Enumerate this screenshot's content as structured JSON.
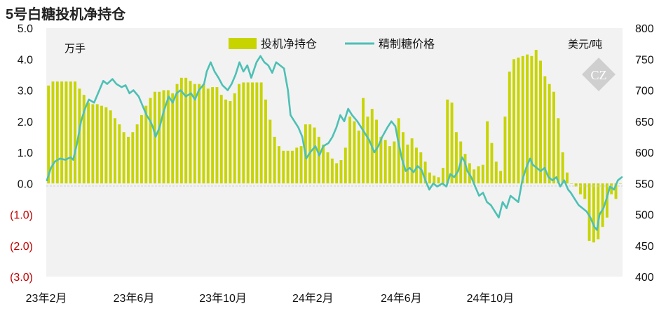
{
  "chart_data": {
    "type": "bar+line",
    "title": "5号白糖投机净持仓",
    "left_unit": "万手",
    "right_unit": "美元/吨",
    "legend": [
      {
        "label": "投机净持仓",
        "kind": "bar",
        "color": "#c8d400"
      },
      {
        "label": "精制糖价格",
        "kind": "line",
        "color": "#4dc0b5"
      }
    ],
    "colors": {
      "plot_bg": "#f2f2f2",
      "bar": "#c8d400",
      "line": "#4dc0b5",
      "negative_tick": "#c00000"
    },
    "left_axis": {
      "min": -3.0,
      "max": 5.0,
      "ticks": [
        {
          "value": 5.0,
          "label": "5.0"
        },
        {
          "value": 4.0,
          "label": "4.0"
        },
        {
          "value": 3.0,
          "label": "3.0"
        },
        {
          "value": 2.0,
          "label": "2.0"
        },
        {
          "value": 1.0,
          "label": "1.0"
        },
        {
          "value": 0.0,
          "label": "0.0"
        },
        {
          "value": -1.0,
          "label": "(1.0)"
        },
        {
          "value": -2.0,
          "label": "(2.0)"
        },
        {
          "value": -3.0,
          "label": "(3.0)"
        }
      ]
    },
    "right_axis": {
      "min": 400,
      "max": 800,
      "ticks": [
        {
          "value": 800,
          "label": "800"
        },
        {
          "value": 750,
          "label": "750"
        },
        {
          "value": 700,
          "label": "700"
        },
        {
          "value": 650,
          "label": "650"
        },
        {
          "value": 600,
          "label": "600"
        },
        {
          "value": 550,
          "label": "550"
        },
        {
          "value": 500,
          "label": "500"
        },
        {
          "value": 450,
          "label": "450"
        },
        {
          "value": 400,
          "label": "400"
        }
      ]
    },
    "x_axis": {
      "start": "2023-02-01",
      "end": "2025-03-31",
      "ticks": [
        {
          "date": "2023-02-01",
          "label": "23年2月"
        },
        {
          "date": "2023-06-01",
          "label": "23年6月"
        },
        {
          "date": "2023-10-01",
          "label": "23年10月"
        },
        {
          "date": "2024-02-01",
          "label": "24年2月"
        },
        {
          "date": "2024-06-01",
          "label": "24年6月"
        },
        {
          "date": "2024-10-01",
          "label": "24年10月"
        }
      ]
    },
    "net_position": [
      3.15,
      3.28,
      3.28,
      3.28,
      3.28,
      3.28,
      3.28,
      3.05,
      2.85,
      2.6,
      2.55,
      2.55,
      2.5,
      2.45,
      2.35,
      2.1,
      1.9,
      1.65,
      1.5,
      1.65,
      1.9,
      2.2,
      2.5,
      2.75,
      2.95,
      2.95,
      3.0,
      3.0,
      2.9,
      3.2,
      3.4,
      3.4,
      3.3,
      3.2,
      3.2,
      3.2,
      3.05,
      3.1,
      3.1,
      2.85,
      2.7,
      2.65,
      2.9,
      3.2,
      3.25,
      3.25,
      3.25,
      3.25,
      3.25,
      2.7,
      2.05,
      1.5,
      1.2,
      1.05,
      1.05,
      1.05,
      1.15,
      1.2,
      1.9,
      1.9,
      1.8,
      1.5,
      1.25,
      1.0,
      0.8,
      0.65,
      0.75,
      1.15,
      2.15,
      2.0,
      1.7,
      2.75,
      2.15,
      2.4,
      2.05,
      1.5,
      1.4,
      1.2,
      1.35,
      2.1,
      1.65,
      1.25,
      1.45,
      1.15,
      1.0,
      0.7,
      0.35,
      0.25,
      0.2,
      0.5,
      2.7,
      2.6,
      1.65,
      1.35,
      0.95,
      0.65,
      0.45,
      0.55,
      0.6,
      2.0,
      1.3,
      0.7,
      0.4,
      2.15,
      3.6,
      4.0,
      4.05,
      4.1,
      4.15,
      4.1,
      4.3,
      3.95,
      3.45,
      3.2,
      2.95,
      2.1,
      1.0,
      0.35,
      0.0,
      -0.1,
      -0.35,
      -0.5,
      -1.85,
      -1.9,
      -1.8,
      -1.4,
      -1.1,
      -0.35,
      -0.5,
      0.0
    ],
    "price": [
      [
        0.0,
        555
      ],
      [
        0.3,
        575
      ],
      [
        0.6,
        585
      ],
      [
        1.0,
        590
      ],
      [
        1.4,
        588
      ],
      [
        1.8,
        592
      ],
      [
        2.0,
        588
      ],
      [
        2.3,
        615
      ],
      [
        2.6,
        650
      ],
      [
        2.9,
        670
      ],
      [
        3.2,
        685
      ],
      [
        3.6,
        680
      ],
      [
        4.0,
        700
      ],
      [
        4.3,
        715
      ],
      [
        4.6,
        710
      ],
      [
        5.0,
        718
      ],
      [
        5.3,
        710
      ],
      [
        5.7,
        705
      ],
      [
        6.0,
        708
      ],
      [
        6.3,
        695
      ],
      [
        6.6,
        700
      ],
      [
        7.0,
        690
      ],
      [
        7.3,
        675
      ],
      [
        7.6,
        660
      ],
      [
        7.9,
        650
      ],
      [
        8.1,
        640
      ],
      [
        8.3,
        625
      ],
      [
        8.6,
        640
      ],
      [
        8.9,
        665
      ],
      [
        9.3,
        690
      ],
      [
        9.6,
        680
      ],
      [
        9.9,
        695
      ],
      [
        10.2,
        700
      ],
      [
        10.6,
        690
      ],
      [
        11.0,
        695
      ],
      [
        11.3,
        685
      ],
      [
        11.6,
        700
      ],
      [
        12.0,
        710
      ],
      [
        12.2,
        730
      ],
      [
        12.5,
        745
      ],
      [
        12.8,
        730
      ],
      [
        13.1,
        720
      ],
      [
        13.4,
        708
      ],
      [
        13.8,
        700
      ],
      [
        14.1,
        710
      ],
      [
        14.4,
        725
      ],
      [
        14.7,
        745
      ],
      [
        15.0,
        730
      ],
      [
        15.3,
        740
      ],
      [
        15.6,
        720
      ],
      [
        16.0,
        745
      ],
      [
        16.3,
        755
      ],
      [
        16.6,
        745
      ],
      [
        16.9,
        740
      ],
      [
        17.2,
        728
      ],
      [
        17.5,
        745
      ],
      [
        17.8,
        740
      ],
      [
        18.1,
        735
      ],
      [
        18.4,
        700
      ],
      [
        18.6,
        660
      ],
      [
        18.9,
        650
      ],
      [
        19.2,
        640
      ],
      [
        19.5,
        625
      ],
      [
        19.8,
        590
      ],
      [
        20.1,
        600
      ],
      [
        20.5,
        610
      ],
      [
        20.8,
        595
      ],
      [
        21.1,
        610
      ],
      [
        21.5,
        615
      ],
      [
        21.8,
        625
      ],
      [
        22.1,
        640
      ],
      [
        22.4,
        660
      ],
      [
        22.7,
        650
      ],
      [
        23.0,
        670
      ],
      [
        23.3,
        660
      ],
      [
        23.7,
        650
      ],
      [
        24.0,
        640
      ],
      [
        24.3,
        630
      ],
      [
        24.6,
        620
      ],
      [
        25.0,
        600
      ],
      [
        25.3,
        610
      ],
      [
        25.6,
        625
      ],
      [
        26.0,
        640
      ],
      [
        26.3,
        650
      ],
      [
        26.6,
        642
      ],
      [
        26.8,
        620
      ],
      [
        27.1,
        590
      ],
      [
        27.4,
        570
      ],
      [
        27.7,
        575
      ],
      [
        28.0,
        568
      ],
      [
        28.3,
        578
      ],
      [
        28.6,
        572
      ],
      [
        28.9,
        555
      ],
      [
        29.2,
        540
      ],
      [
        29.5,
        550
      ],
      [
        29.8,
        545
      ],
      [
        30.2,
        550
      ],
      [
        30.5,
        545
      ],
      [
        30.8,
        565
      ],
      [
        31.1,
        560
      ],
      [
        31.4,
        570
      ],
      [
        31.7,
        592
      ],
      [
        31.9,
        585
      ],
      [
        32.1,
        570
      ],
      [
        32.4,
        560
      ],
      [
        32.7,
        545
      ],
      [
        33.0,
        530
      ],
      [
        33.3,
        535
      ],
      [
        33.6,
        520
      ],
      [
        33.9,
        515
      ],
      [
        34.2,
        505
      ],
      [
        34.5,
        495
      ],
      [
        34.8,
        520
      ],
      [
        35.1,
        510
      ],
      [
        35.4,
        530
      ],
      [
        35.7,
        525
      ],
      [
        36.0,
        520
      ],
      [
        36.3,
        555
      ],
      [
        36.6,
        575
      ],
      [
        36.9,
        590
      ],
      [
        37.1,
        580
      ],
      [
        37.4,
        575
      ],
      [
        37.7,
        570
      ],
      [
        38.0,
        575
      ],
      [
        38.3,
        560
      ],
      [
        38.6,
        555
      ],
      [
        38.9,
        560
      ],
      [
        39.2,
        545
      ],
      [
        39.5,
        555
      ],
      [
        39.8,
        540
      ],
      [
        40.0,
        535
      ],
      [
        40.3,
        525
      ],
      [
        40.6,
        515
      ],
      [
        40.9,
        510
      ],
      [
        41.2,
        505
      ],
      [
        41.5,
        495
      ],
      [
        41.8,
        480
      ],
      [
        42.0,
        475
      ],
      [
        42.2,
        500
      ],
      [
        42.5,
        510
      ],
      [
        42.8,
        530
      ],
      [
        43.0,
        545
      ],
      [
        43.3,
        540
      ],
      [
        43.6,
        555
      ],
      [
        43.9,
        560
      ]
    ]
  }
}
